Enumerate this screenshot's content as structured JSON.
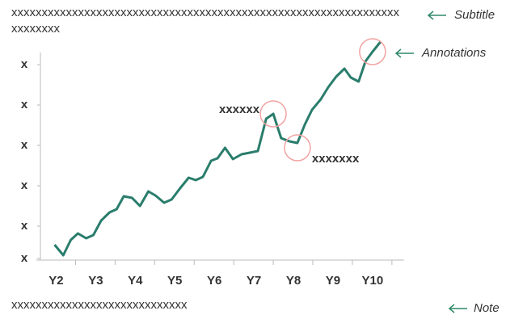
{
  "chart_data": {
    "type": "line",
    "subtitle": "xxxxxxxxxxxxxxxxxxxxxxxxxxxxxxxxxxxxxxxxxxxxxxxxxxxxxxxxxxxxxxxxxxxxxxxx",
    "note": "xxxxxxxxxxxxxxxxxxxxxxxxxxxxx",
    "guides": [
      "Subtitle",
      "Annotations",
      "Note"
    ],
    "annotations": [
      {
        "text": "xxxxxx"
      },
      {
        "text": "xxxxxxx"
      }
    ],
    "color": "#2a7d6c",
    "x": [
      1.96,
      2.18,
      2.37,
      2.55,
      2.76,
      2.94,
      3.14,
      3.35,
      3.53,
      3.71,
      3.92,
      4.12,
      4.33,
      4.51,
      4.73,
      4.92,
      5.12,
      5.35,
      5.53,
      5.71,
      5.92,
      6.08,
      6.27,
      6.47,
      6.69,
      6.9,
      7.1,
      7.31,
      7.49,
      7.69,
      7.9,
      8.1,
      8.29,
      8.47,
      8.69,
      8.88,
      9.08,
      9.29,
      9.45,
      9.65,
      9.82,
      10.0,
      10.2
    ],
    "values": [
      0.54,
      0.28,
      0.66,
      0.82,
      0.7,
      0.78,
      1.14,
      1.34,
      1.42,
      1.74,
      1.7,
      1.5,
      1.86,
      1.76,
      1.58,
      1.66,
      1.92,
      2.2,
      2.14,
      2.22,
      2.62,
      2.68,
      2.94,
      2.66,
      2.78,
      2.82,
      2.86,
      3.66,
      3.78,
      3.18,
      3.1,
      3.06,
      3.52,
      3.88,
      4.14,
      4.44,
      4.7,
      4.9,
      4.68,
      4.58,
      5.08,
      5.32,
      5.56
    ],
    "xlim": [
      1.5,
      10.8
    ],
    "xticks": [
      {
        "value": 2,
        "label": "Y2"
      },
      {
        "value": 3,
        "label": "Y3"
      },
      {
        "value": 4,
        "label": "Y4"
      },
      {
        "value": 5,
        "label": "Y5"
      },
      {
        "value": 6,
        "label": "Y6"
      },
      {
        "value": 7,
        "label": "Y7"
      },
      {
        "value": 8,
        "label": "Y8"
      },
      {
        "value": 9,
        "label": "Y9"
      },
      {
        "value": 10,
        "label": "Y10"
      }
    ],
    "ylim": [
      0.1,
      5.3
    ],
    "yticks": [
      {
        "value": 0.2,
        "label": "x"
      },
      {
        "value": 1,
        "label": "x"
      },
      {
        "value": 2,
        "label": "x"
      },
      {
        "value": 3,
        "label": "x"
      },
      {
        "value": 4,
        "label": "x"
      },
      {
        "value": 5,
        "label": "x"
      }
    ]
  }
}
